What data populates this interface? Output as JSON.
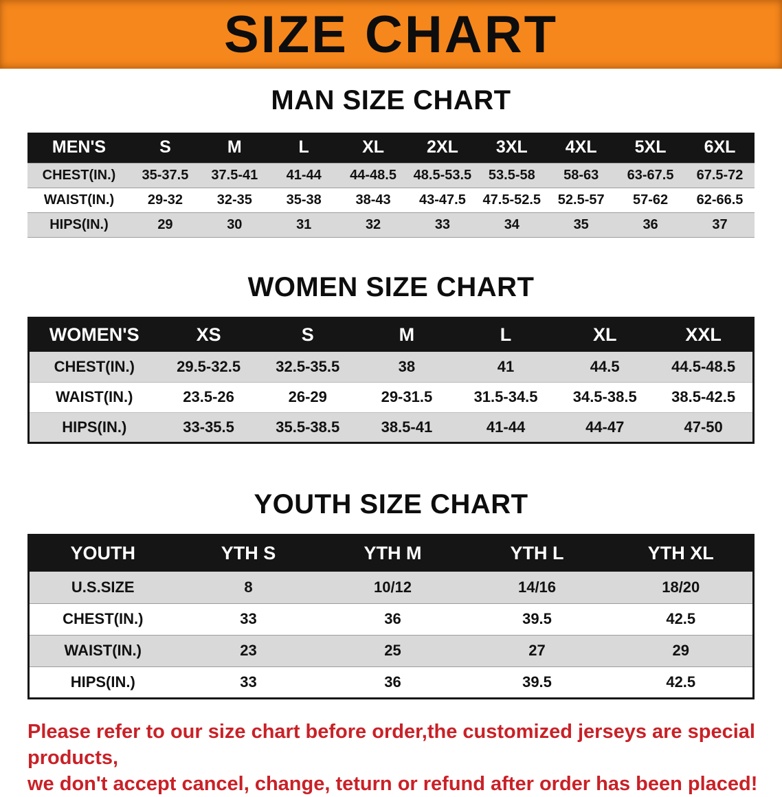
{
  "banner": {
    "title": "SIZE CHART"
  },
  "men": {
    "heading": "MAN SIZE CHART",
    "label_header": "MEN'S",
    "columns": [
      "S",
      "M",
      "L",
      "XL",
      "2XL",
      "3XL",
      "4XL",
      "5XL",
      "6XL"
    ],
    "rows": [
      {
        "label": "CHEST(IN.)",
        "values": [
          "35-37.5",
          "37.5-41",
          "41-44",
          "44-48.5",
          "48.5-53.5",
          "53.5-58",
          "58-63",
          "63-67.5",
          "67.5-72"
        ]
      },
      {
        "label": "WAIST(IN.)",
        "values": [
          "29-32",
          "32-35",
          "35-38",
          "38-43",
          "43-47.5",
          "47.5-52.5",
          "52.5-57",
          "57-62",
          "62-66.5"
        ]
      },
      {
        "label": "HIPS(IN.)",
        "values": [
          "29",
          "30",
          "31",
          "32",
          "33",
          "34",
          "35",
          "36",
          "37"
        ]
      }
    ]
  },
  "women": {
    "heading": "WOMEN SIZE CHART",
    "label_header": "WOMEN'S",
    "columns": [
      "XS",
      "S",
      "M",
      "L",
      "XL",
      "XXL"
    ],
    "rows": [
      {
        "label": "CHEST(IN.)",
        "values": [
          "29.5-32.5",
          "32.5-35.5",
          "38",
          "41",
          "44.5",
          "44.5-48.5"
        ]
      },
      {
        "label": "WAIST(IN.)",
        "values": [
          "23.5-26",
          "26-29",
          "29-31.5",
          "31.5-34.5",
          "34.5-38.5",
          "38.5-42.5"
        ]
      },
      {
        "label": "HIPS(IN.)",
        "values": [
          "33-35.5",
          "35.5-38.5",
          "38.5-41",
          "41-44",
          "44-47",
          "47-50"
        ]
      }
    ]
  },
  "youth": {
    "heading": "YOUTH SIZE CHART",
    "label_header": "YOUTH",
    "columns": [
      "YTH S",
      "YTH M",
      "YTH L",
      "YTH XL"
    ],
    "rows": [
      {
        "label": "U.S.SIZE",
        "values": [
          "8",
          "10/12",
          "14/16",
          "18/20"
        ]
      },
      {
        "label": "CHEST(IN.)",
        "values": [
          "33",
          "36",
          "39.5",
          "42.5"
        ]
      },
      {
        "label": "WAIST(IN.)",
        "values": [
          "23",
          "25",
          "27",
          "29"
        ]
      },
      {
        "label": "HIPS(IN.)",
        "values": [
          "33",
          "36",
          "39.5",
          "42.5"
        ]
      }
    ]
  },
  "footer": {
    "line1": "Please refer to our size chart before order,the customized jerseys are special products,",
    "line2": "we don't accept cancel, change, teturn or refund after order has been placed!"
  },
  "colors": {
    "banner_bg": "#f6871c",
    "table_header_bg": "#151515",
    "row_alt_bg": "#d9d9d9",
    "footer_text": "#c92127"
  }
}
